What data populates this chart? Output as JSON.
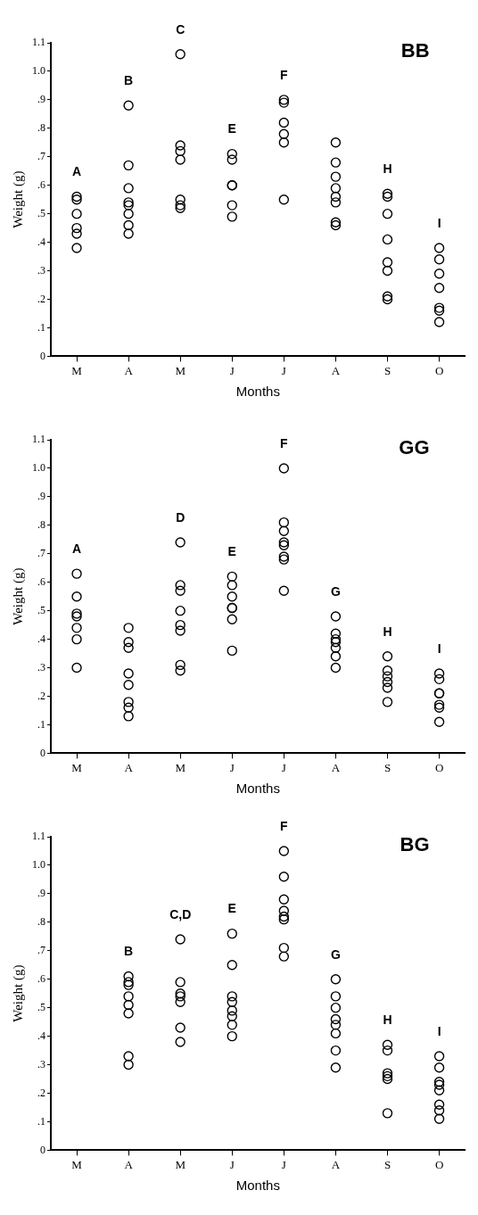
{
  "chart_data": [
    {
      "type": "scatter",
      "title": "BB",
      "xlabel": "Months",
      "ylabel": "Weight (g)",
      "ylim": [
        0,
        1.1
      ],
      "marker": "circle",
      "grid": false,
      "categories": [
        "M",
        "A",
        "M",
        "J",
        "J",
        "A",
        "S",
        "O"
      ],
      "yticks": [
        {
          "value": 0,
          "label": "0"
        },
        {
          "value": 0.1,
          "label": ".1"
        },
        {
          "value": 0.2,
          "label": ".2"
        },
        {
          "value": 0.3,
          "label": ".3"
        },
        {
          "value": 0.4,
          "label": ".4"
        },
        {
          "value": 0.5,
          "label": ".5"
        },
        {
          "value": 0.6,
          "label": ".6"
        },
        {
          "value": 0.7,
          "label": ".7"
        },
        {
          "value": 0.8,
          "label": ".8"
        },
        {
          "value": 0.9,
          "label": ".9"
        },
        {
          "value": 1.0,
          "label": "1.0"
        },
        {
          "value": 1.1,
          "label": "1.1"
        }
      ],
      "series": [
        {
          "color": "#000000",
          "values": [
            0.56,
            0.88,
            1.06,
            0.71,
            0.9,
            0.75,
            0.57,
            0.38
          ],
          "value_labels": [
            "A",
            "B",
            "C",
            "E",
            "F",
            null,
            "H",
            "I"
          ]
        },
        {
          "color": "#000000",
          "values": [
            0.55,
            0.67,
            0.74,
            0.69,
            0.89,
            0.68,
            0.56,
            0.34
          ]
        },
        {
          "color": "#000000",
          "values": [
            0.5,
            0.59,
            0.72,
            0.6,
            0.82,
            0.63,
            0.5,
            0.29
          ]
        },
        {
          "color": "#000000",
          "values": [
            0.45,
            0.54,
            0.69,
            0.6,
            0.78,
            0.59,
            0.41,
            0.24
          ]
        },
        {
          "color": "#000000",
          "values": [
            0.43,
            0.53,
            0.55,
            0.53,
            0.75,
            0.56,
            0.33,
            0.17
          ]
        },
        {
          "color": "#000000",
          "values": [
            0.38,
            0.5,
            0.53,
            0.49,
            0.55,
            0.54,
            0.3,
            0.16
          ]
        },
        {
          "color": "#000000",
          "values": [
            null,
            0.46,
            0.52,
            null,
            null,
            0.47,
            0.21,
            0.12
          ]
        },
        {
          "color": "#000000",
          "values": [
            null,
            0.43,
            null,
            null,
            null,
            0.46,
            0.2,
            null
          ]
        }
      ]
    },
    {
      "type": "scatter",
      "title": "GG",
      "xlabel": "Months",
      "ylabel": "Weight (g)",
      "ylim": [
        0,
        1.1
      ],
      "marker": "circle",
      "grid": false,
      "categories": [
        "M",
        "A",
        "M",
        "J",
        "J",
        "A",
        "S",
        "O"
      ],
      "yticks": [
        {
          "value": 0,
          "label": "0"
        },
        {
          "value": 0.1,
          "label": ".1"
        },
        {
          "value": 0.2,
          "label": ".2"
        },
        {
          "value": 0.3,
          "label": ".3"
        },
        {
          "value": 0.4,
          "label": ".4"
        },
        {
          "value": 0.5,
          "label": ".5"
        },
        {
          "value": 0.6,
          "label": ".6"
        },
        {
          "value": 0.7,
          "label": ".7"
        },
        {
          "value": 0.8,
          "label": ".8"
        },
        {
          "value": 0.9,
          "label": ".9"
        },
        {
          "value": 1.0,
          "label": "1.0"
        },
        {
          "value": 1.1,
          "label": "1.1"
        }
      ],
      "series": [
        {
          "color": "#000000",
          "values": [
            0.63,
            0.44,
            0.74,
            0.62,
            1.0,
            0.48,
            0.34,
            0.28
          ],
          "value_labels": [
            "A",
            null,
            "D",
            "E",
            "F",
            "G",
            "H",
            "I"
          ]
        },
        {
          "color": "#000000",
          "values": [
            0.55,
            0.39,
            0.59,
            0.59,
            0.81,
            0.42,
            0.29,
            0.26
          ]
        },
        {
          "color": "#000000",
          "values": [
            0.49,
            0.37,
            0.57,
            0.55,
            0.78,
            0.4,
            0.27,
            0.21
          ]
        },
        {
          "color": "#000000",
          "values": [
            0.48,
            0.28,
            0.5,
            0.51,
            0.74,
            0.39,
            0.25,
            0.21
          ]
        },
        {
          "color": "#000000",
          "values": [
            0.44,
            0.24,
            0.45,
            0.51,
            0.73,
            0.37,
            0.23,
            0.17
          ]
        },
        {
          "color": "#000000",
          "values": [
            0.4,
            0.18,
            0.43,
            0.47,
            0.69,
            0.34,
            0.18,
            0.16
          ]
        },
        {
          "color": "#000000",
          "values": [
            0.3,
            0.16,
            0.31,
            0.36,
            0.68,
            0.3,
            null,
            0.11
          ]
        },
        {
          "color": "#000000",
          "values": [
            null,
            0.13,
            0.29,
            null,
            0.57,
            null,
            null,
            null
          ]
        }
      ]
    },
    {
      "type": "scatter",
      "title": "BG",
      "xlabel": "Months",
      "ylabel": "Weight (g)",
      "ylim": [
        0,
        1.1
      ],
      "marker": "circle",
      "grid": false,
      "categories": [
        "M",
        "A",
        "M",
        "J",
        "J",
        "A",
        "S",
        "O"
      ],
      "yticks": [
        {
          "value": 0,
          "label": "0"
        },
        {
          "value": 0.1,
          "label": ".1"
        },
        {
          "value": 0.2,
          "label": ".2"
        },
        {
          "value": 0.3,
          "label": ".3"
        },
        {
          "value": 0.4,
          "label": ".4"
        },
        {
          "value": 0.5,
          "label": ".5"
        },
        {
          "value": 0.6,
          "label": ".6"
        },
        {
          "value": 0.7,
          "label": ".7"
        },
        {
          "value": 0.8,
          "label": ".8"
        },
        {
          "value": 0.9,
          "label": ".9"
        },
        {
          "value": 1.0,
          "label": "1.0"
        },
        {
          "value": 1.1,
          "label": "1.1"
        }
      ],
      "series": [
        {
          "color": "#000000",
          "values": [
            null,
            0.61,
            0.74,
            0.76,
            1.05,
            0.6,
            0.37,
            0.33
          ],
          "value_labels": [
            null,
            "B",
            "C,D",
            "E",
            "F",
            "G",
            "H",
            "I"
          ]
        },
        {
          "color": "#000000",
          "values": [
            null,
            0.59,
            0.59,
            0.65,
            0.96,
            0.54,
            0.35,
            0.29
          ]
        },
        {
          "color": "#000000",
          "values": [
            null,
            0.58,
            0.55,
            0.54,
            0.88,
            0.5,
            0.27,
            0.24
          ]
        },
        {
          "color": "#000000",
          "values": [
            null,
            0.54,
            0.54,
            0.52,
            0.84,
            0.46,
            0.26,
            0.23
          ]
        },
        {
          "color": "#000000",
          "values": [
            null,
            0.51,
            0.52,
            0.49,
            0.82,
            0.44,
            0.25,
            0.21
          ]
        },
        {
          "color": "#000000",
          "values": [
            null,
            0.48,
            0.43,
            0.47,
            0.81,
            0.41,
            0.13,
            0.16
          ]
        },
        {
          "color": "#000000",
          "values": [
            null,
            0.33,
            0.38,
            0.44,
            0.71,
            0.35,
            null,
            0.14
          ]
        },
        {
          "color": "#000000",
          "values": [
            null,
            0.3,
            null,
            0.4,
            0.68,
            0.29,
            null,
            0.11
          ]
        }
      ]
    }
  ]
}
